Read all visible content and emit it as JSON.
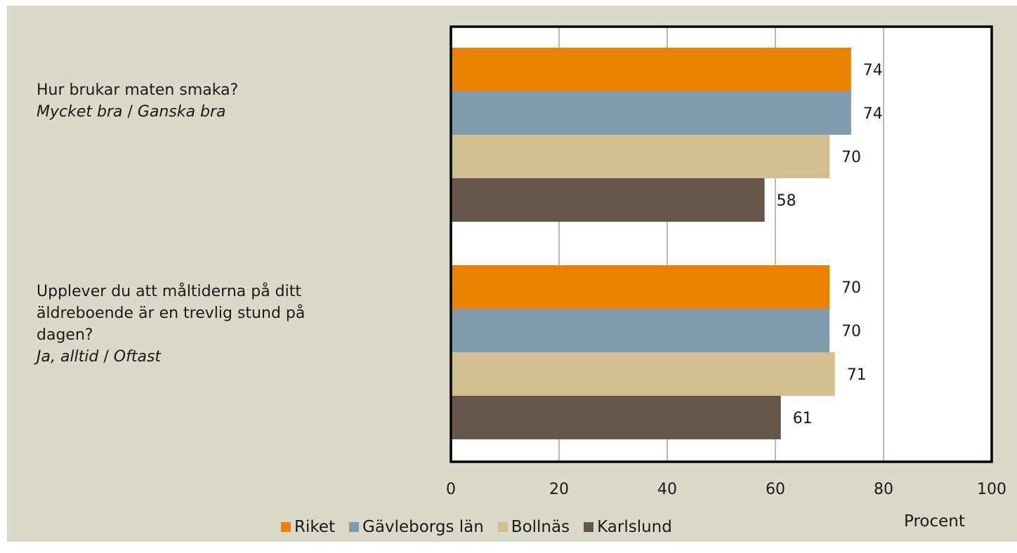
{
  "questions": [
    {
      "title": "Hur brukar maten smaka?",
      "sub_a": "Mycket bra",
      "sep": " / ",
      "sub_b": "Ganska bra"
    },
    {
      "title_lines": [
        "Upplever du att måltiderna på ditt",
        "äldreboende är en trevlig stund på",
        "dagen?"
      ],
      "sub_a": "Ja, alltid",
      "sep": " / ",
      "sub_b": "Oftast"
    }
  ],
  "colors": {
    "background": "#dbd8cc",
    "plot_bg": "#ffffff",
    "riket": "#e88200",
    "gavleborg": "#7f9bad",
    "bollnas": "#d3be94",
    "karlslund": "#64564a"
  },
  "chart_data": {
    "type": "bar",
    "orientation": "horizontal",
    "categories": [
      "Hur brukar maten smaka?",
      "Upplever du att måltiderna på ditt äldreboende är en trevlig stund på dagen?"
    ],
    "series": [
      {
        "name": "Riket",
        "values": [
          74,
          70
        ],
        "color": "#e88200"
      },
      {
        "name": "Gävleborgs län",
        "values": [
          74,
          70
        ],
        "color": "#7f9bad"
      },
      {
        "name": "Bollnäs",
        "values": [
          70,
          71
        ],
        "color": "#d3be94"
      },
      {
        "name": "Karlslund",
        "values": [
          58,
          61
        ],
        "color": "#64564a"
      }
    ],
    "xlim": [
      0,
      100
    ],
    "xticks": [
      "0",
      "20",
      "40",
      "60",
      "80",
      "100"
    ],
    "xlabel": "Procent",
    "grid": true,
    "legend_position": "bottom"
  }
}
